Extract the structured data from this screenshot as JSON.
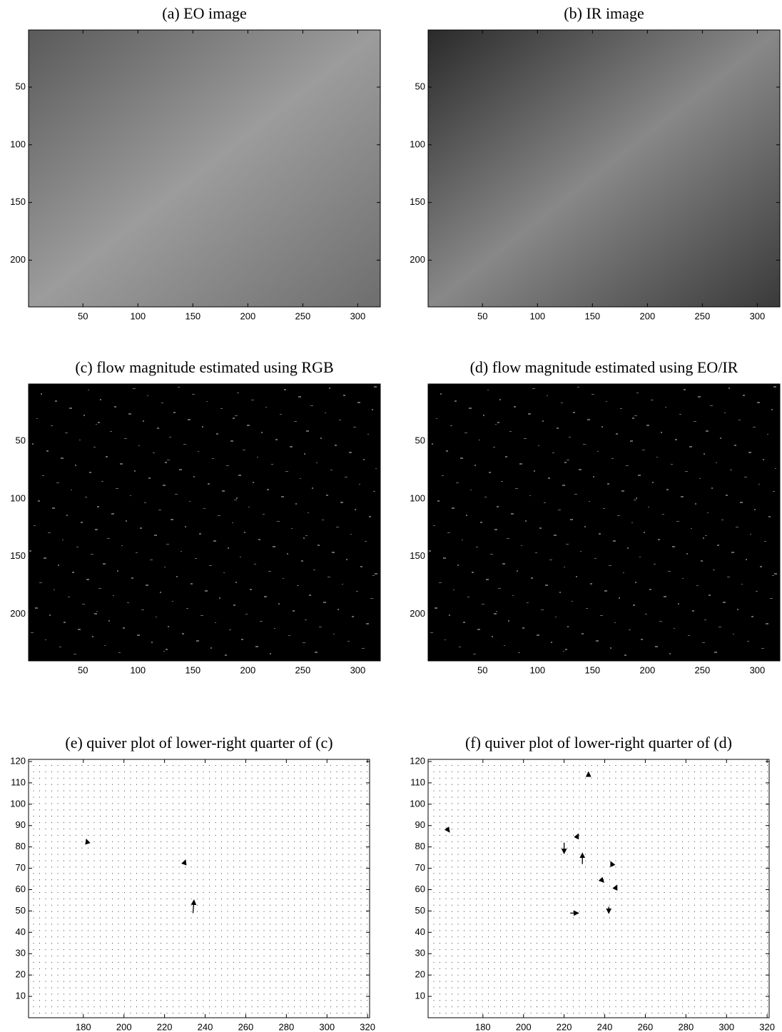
{
  "chart_data": [
    {
      "type": "image",
      "title": "(a) EO image",
      "color": "#8f8f8f",
      "xlim": [
        0.5,
        320.5
      ],
      "ylim": [
        240.5,
        0.5
      ],
      "xticks": [
        50,
        100,
        150,
        200,
        250,
        300
      ],
      "yticks": [
        50,
        100,
        150,
        200
      ]
    },
    {
      "type": "image",
      "title": "(b) IR image",
      "color": "#6a6a6a",
      "xlim": [
        0.5,
        320.5
      ],
      "ylim": [
        240.5,
        0.5
      ],
      "xticks": [
        50,
        100,
        150,
        200,
        250,
        300
      ],
      "yticks": [
        50,
        100,
        150,
        200
      ]
    },
    {
      "type": "image",
      "title": "(c) flow magnitude estimated using RGB",
      "color": "#000000",
      "xlim": [
        0.5,
        320.5
      ],
      "ylim": [
        240.5,
        0.5
      ],
      "xticks": [
        50,
        100,
        150,
        200,
        250,
        300
      ],
      "yticks": [
        50,
        100,
        150,
        200
      ]
    },
    {
      "type": "image",
      "title": "(d) flow magnitude estimated using EO/IR",
      "color": "#000000",
      "xlim": [
        0.5,
        320.5
      ],
      "ylim": [
        240.5,
        0.5
      ],
      "xticks": [
        50,
        100,
        150,
        200,
        250,
        300
      ],
      "yticks": [
        50,
        100,
        150,
        200
      ]
    },
    {
      "type": "quiver",
      "title": "(e) quiver plot of lower-right quarter of (c)",
      "color": "#000000",
      "xlim": [
        153,
        321
      ],
      "ylim": [
        0,
        121
      ],
      "xticks": [
        180,
        200,
        220,
        240,
        260,
        280,
        300,
        320
      ],
      "yticks": [
        10,
        20,
        30,
        40,
        50,
        60,
        70,
        80,
        90,
        100,
        110,
        120
      ],
      "x": [
        234,
        182,
        230
      ],
      "y": [
        49,
        82,
        73
      ],
      "u": [
        0.5,
        -0.5,
        0.3
      ],
      "v": [
        6,
        1.5,
        0.8
      ]
    },
    {
      "type": "quiver",
      "title": "(f) quiver plot of lower-right quarter of (d)",
      "color": "#000000",
      "xlim": [
        153,
        321
      ],
      "ylim": [
        0,
        121
      ],
      "xticks": [
        180,
        200,
        220,
        240,
        260,
        280,
        300,
        320
      ],
      "yticks": [
        10,
        20,
        30,
        40,
        50,
        60,
        70,
        80,
        90,
        100,
        110,
        120
      ],
      "x": [
        229,
        220,
        223,
        162,
        238,
        242,
        226,
        244,
        232,
        245
      ],
      "y": [
        72,
        82,
        49,
        89,
        65,
        52,
        84,
        71,
        113,
        60
      ],
      "u": [
        0,
        0,
        4,
        1.5,
        1.5,
        0,
        1,
        -1,
        0,
        1
      ],
      "v": [
        5,
        -5,
        0,
        -2,
        -1.5,
        -3,
        2,
        2,
        2,
        2
      ]
    }
  ]
}
